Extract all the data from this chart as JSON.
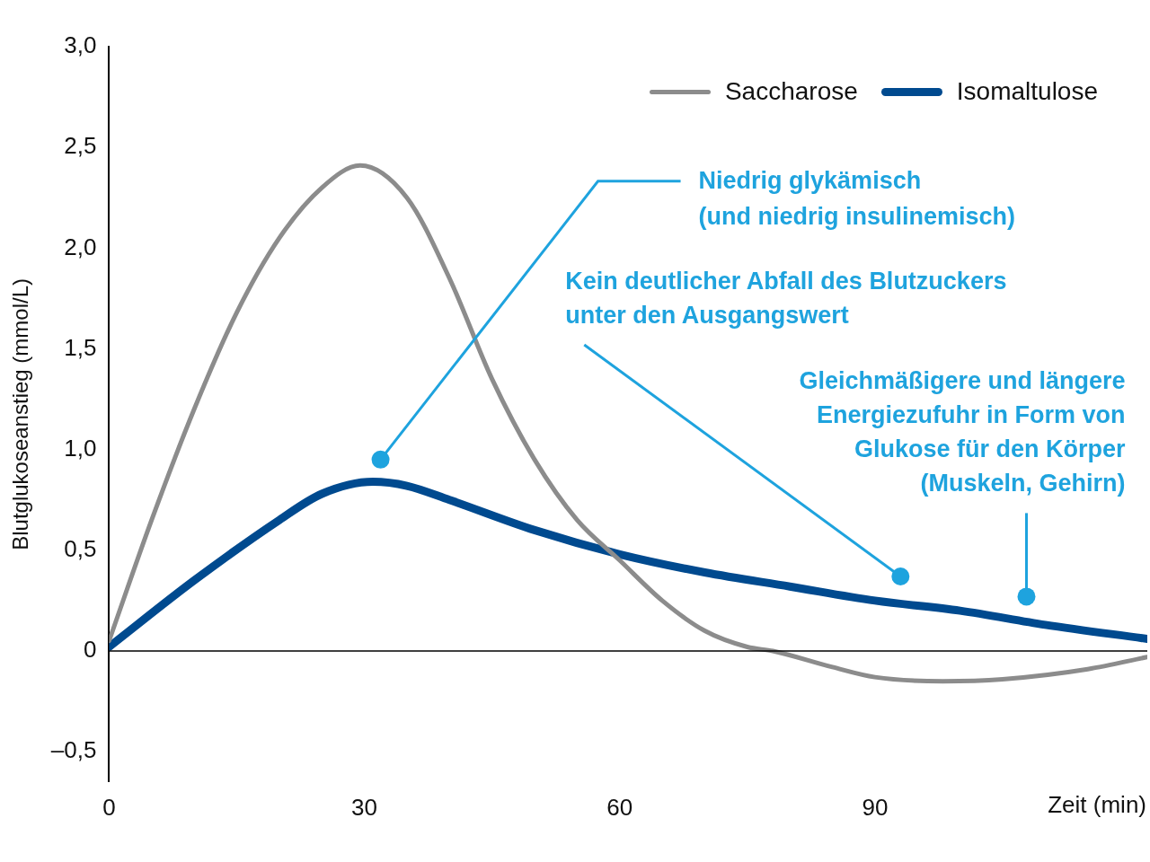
{
  "chart_data": {
    "type": "line",
    "xlabel": "Zeit (min)",
    "ylabel": "Blutglukoseanstieg (mmol/L)",
    "xlim": [
      0,
      122
    ],
    "xticks": [
      0,
      30,
      60,
      90
    ],
    "ylim": [
      -0.65,
      3.0
    ],
    "yticks": [
      {
        "value": -0.5,
        "label": "–0,5"
      },
      {
        "value": 0,
        "label": "0"
      },
      {
        "value": 0.5,
        "label": "0,5"
      },
      {
        "value": 1,
        "label": "1,0"
      },
      {
        "value": 1.5,
        "label": "1,5"
      },
      {
        "value": 2,
        "label": "2,0"
      },
      {
        "value": 2.5,
        "label": "2,5"
      },
      {
        "value": 3,
        "label": "3,0"
      }
    ],
    "grid": false,
    "legend": "top right",
    "marker": "none",
    "line_style": "solid",
    "ref_lines": [
      {
        "axis": "y",
        "value": 0,
        "color": "#000000"
      }
    ],
    "series": [
      {
        "name": "Saccharose",
        "color": "#8c8c8c",
        "x": [
          0,
          5,
          10,
          15,
          20,
          25,
          29.5,
          35,
          40,
          45,
          50,
          55,
          60,
          65,
          70,
          75,
          78,
          85,
          90,
          98,
          105,
          115,
          122
        ],
        "values": [
          0.05,
          0.65,
          1.2,
          1.68,
          2.05,
          2.3,
          2.41,
          2.25,
          1.85,
          1.35,
          0.95,
          0.65,
          0.45,
          0.25,
          0.1,
          0.02,
          0,
          -0.08,
          -0.13,
          -0.15,
          -0.14,
          -0.09,
          -0.03
        ]
      },
      {
        "name": "Isomaltulose",
        "color": "#004a8f",
        "x": [
          0,
          10,
          20,
          25,
          31,
          35,
          40,
          50,
          60,
          70,
          80,
          90,
          100,
          110,
          122
        ],
        "values": [
          0.02,
          0.35,
          0.65,
          0.78,
          0.84,
          0.82,
          0.75,
          0.6,
          0.48,
          0.39,
          0.32,
          0.25,
          0.2,
          0.13,
          0.06
        ]
      }
    ],
    "annotations": [
      {
        "text": "Niedrig glykämisch\n(und niedrig insulinemisch)",
        "x": 31.9,
        "y": 0.95
      },
      {
        "text": "Kein deutlicher Abfall des Blutzuckers\nunter den Ausgangswert",
        "x": 93,
        "y": 0.37
      },
      {
        "text": "Gleichmäßigere und längere\nEnergiezufuhr in Form von\nGlukose für den Körper\n(Muskeln, Gehirn)",
        "x": 107.8,
        "y": 0.27
      }
    ]
  }
}
